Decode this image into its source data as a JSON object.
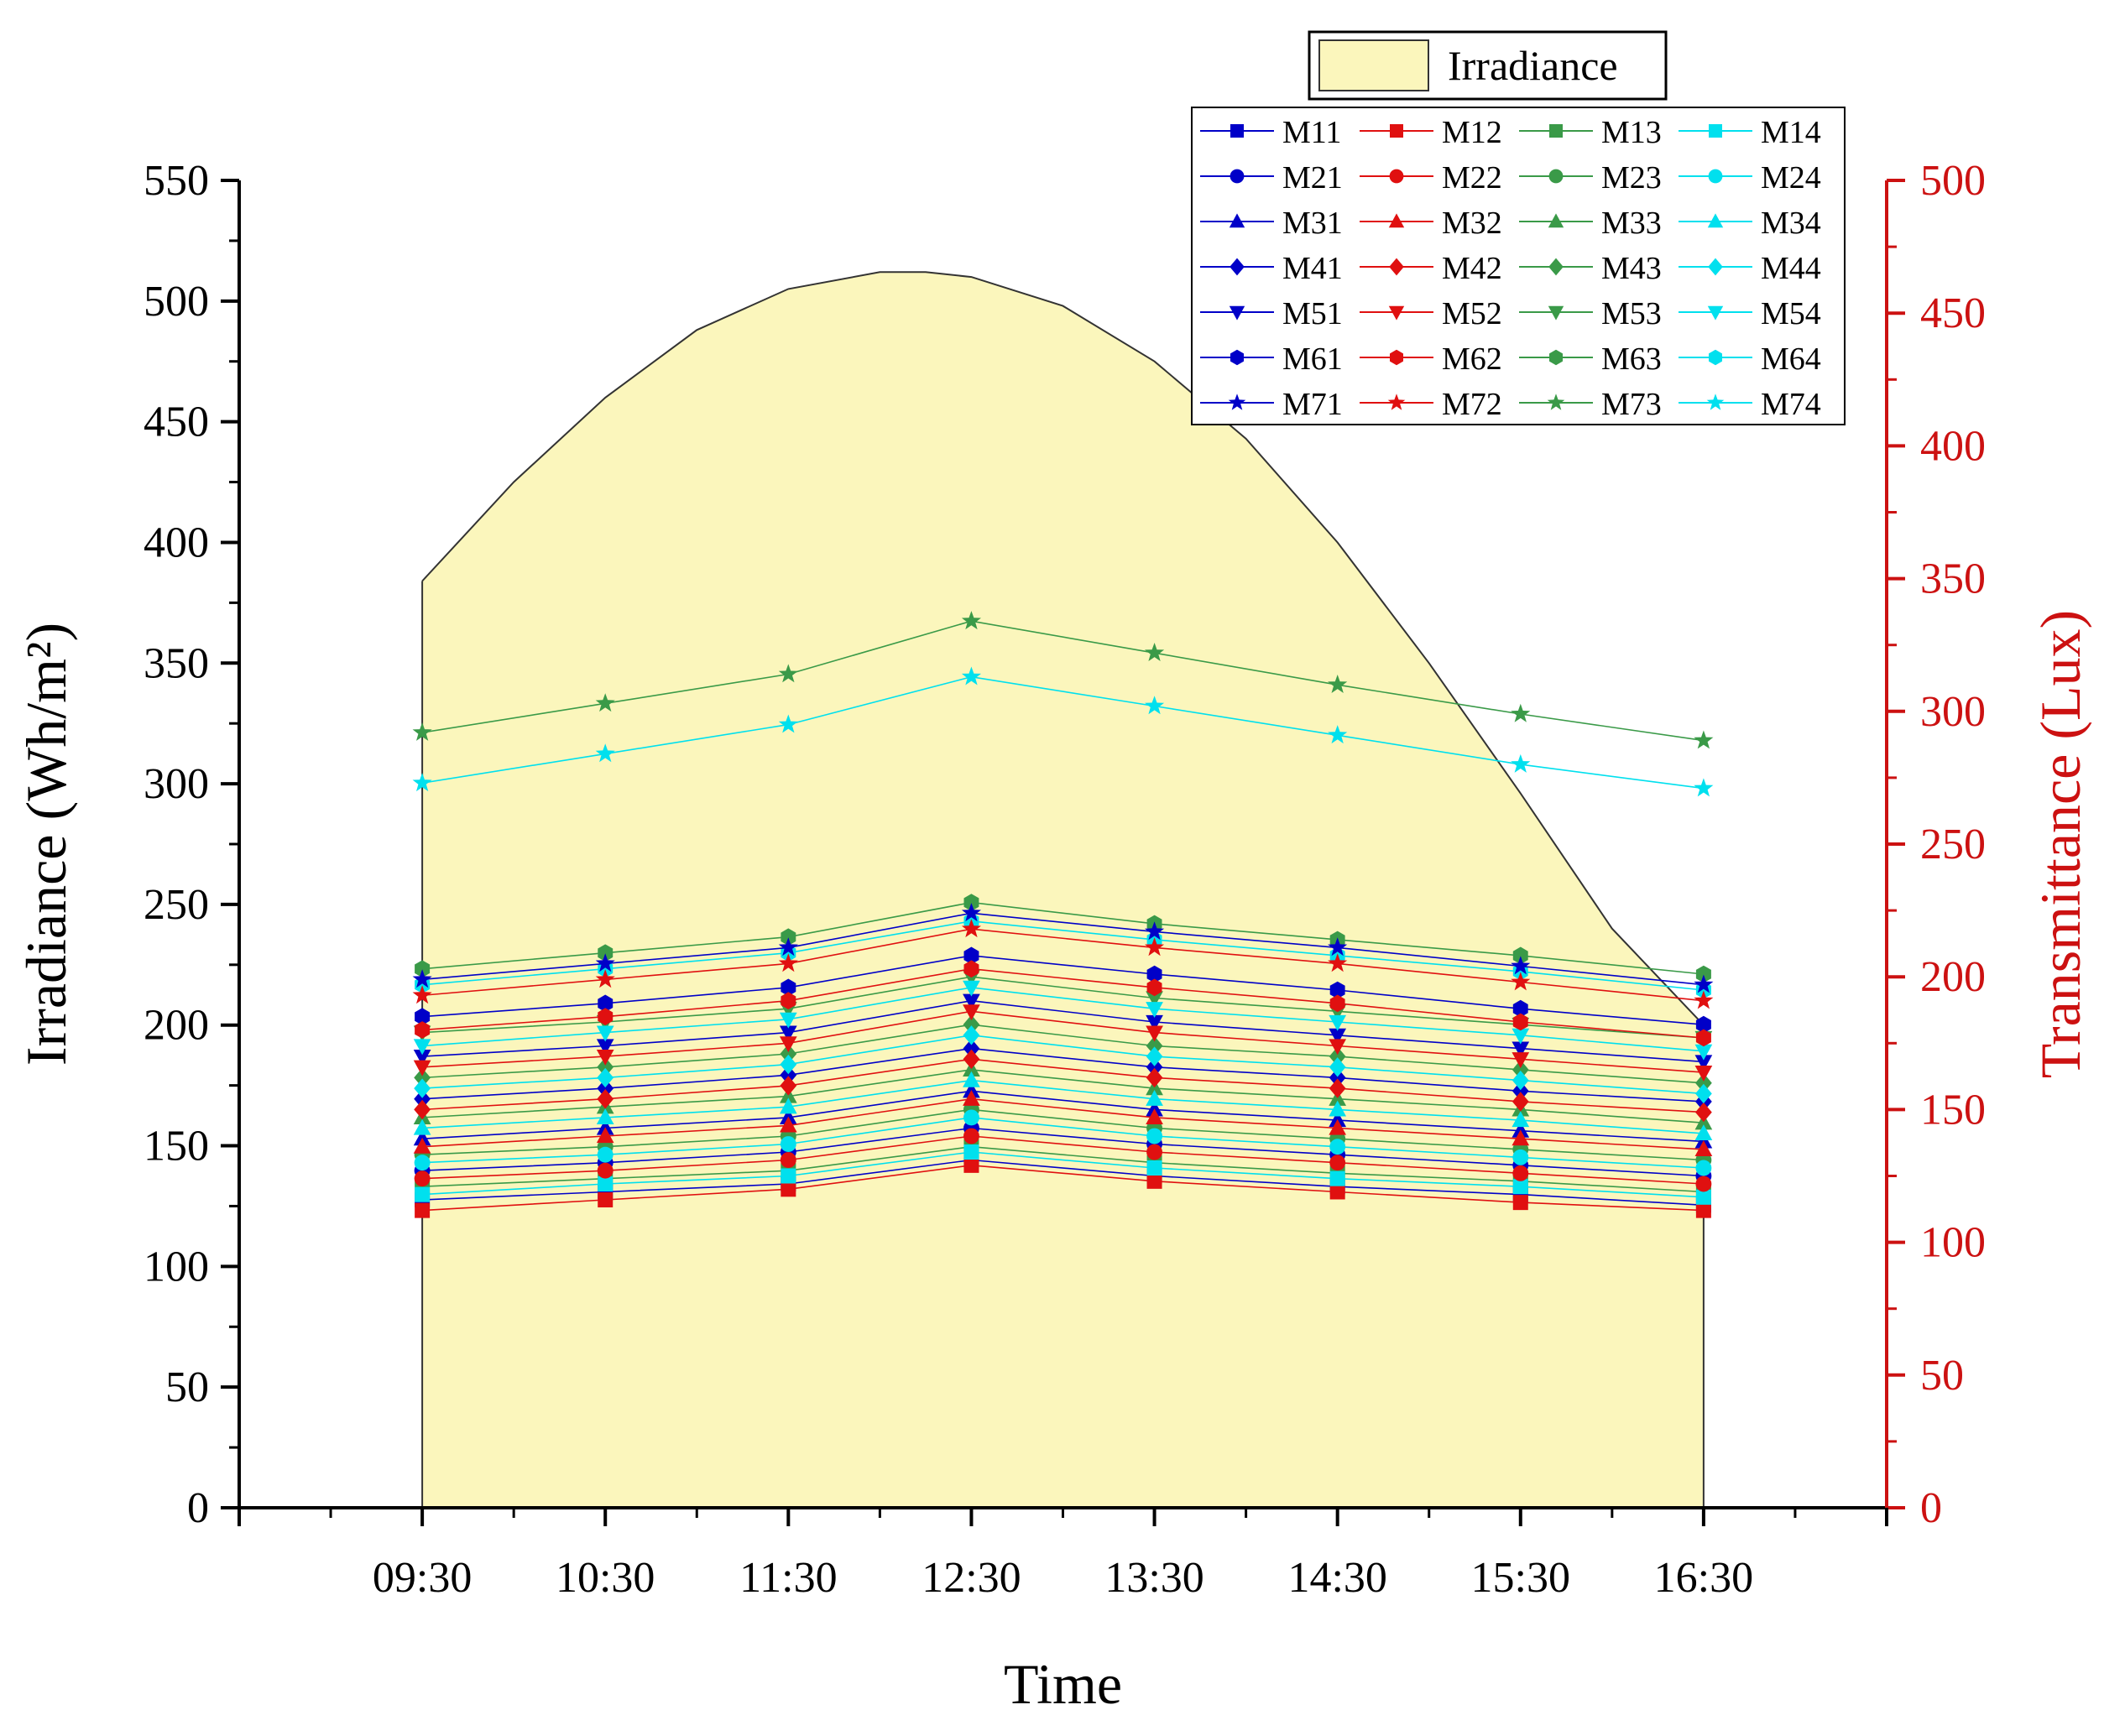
{
  "colors": {
    "blue": "#0000c8",
    "red": "#e01010",
    "green": "#3a9a48",
    "cyan": "#00e0ee",
    "irradiance_fill": "#fbf6bc",
    "right_axis": "#cc1111",
    "axis": "#000000"
  },
  "chart_data": {
    "type": "area+line",
    "title": "",
    "xlabel": "Time",
    "ylabel_left": "Irradiance (Wh/m²)",
    "ylabel_right": "Transmittance (Lux)",
    "x_categories": [
      "09:30",
      "10:30",
      "11:30",
      "12:30",
      "13:30",
      "14:30",
      "15:30",
      "16:30"
    ],
    "x_range": [
      -1,
      8
    ],
    "y_left_range": [
      0,
      550
    ],
    "y_left_ticks": [
      "0",
      "50",
      "100",
      "150",
      "200",
      "250",
      "300",
      "350",
      "400",
      "450",
      "500",
      "550"
    ],
    "y_right_range": [
      0,
      500
    ],
    "y_right_ticks": [
      "0",
      "50",
      "100",
      "150",
      "200",
      "250",
      "300",
      "350",
      "400",
      "450",
      "500"
    ],
    "legend_position": "top-right",
    "irradiance": {
      "name": "Irradiance",
      "axis": "left",
      "x": [
        0,
        0.5,
        1,
        1.5,
        2,
        2.5,
        2.75,
        3,
        3.5,
        4,
        4.5,
        5,
        5.5,
        6,
        6.5,
        7
      ],
      "y": [
        384,
        425,
        460,
        488,
        505,
        512,
        512,
        510,
        498,
        475,
        443,
        400,
        350,
        296,
        240,
        200
      ]
    },
    "series_meta": {
      "markers": [
        "square",
        "circle",
        "triangle-up",
        "diamond",
        "triangle-down",
        "hexagon",
        "star"
      ],
      "color_keys": [
        "blue",
        "red",
        "green",
        "cyan"
      ]
    },
    "series": [
      {
        "name": "M11",
        "values": [
          116,
          119,
          122,
          131,
          125,
          121,
          118,
          114
        ]
      },
      {
        "name": "M12",
        "values": [
          112,
          116,
          120,
          129,
          123,
          119,
          115,
          112
        ]
      },
      {
        "name": "M13",
        "values": [
          121,
          124,
          127,
          136,
          130,
          126,
          123,
          119
        ]
      },
      {
        "name": "M14",
        "values": [
          118,
          122,
          125,
          134,
          128,
          124,
          121,
          117
        ]
      },
      {
        "name": "M21",
        "values": [
          127,
          130,
          134,
          143,
          137,
          133,
          129,
          125
        ]
      },
      {
        "name": "M22",
        "values": [
          124,
          127,
          131,
          140,
          134,
          130,
          126,
          122
        ]
      },
      {
        "name": "M23",
        "values": [
          133,
          136,
          140,
          150,
          143,
          139,
          135,
          131
        ]
      },
      {
        "name": "M24",
        "values": [
          130,
          133,
          137,
          147,
          140,
          136,
          132,
          128
        ]
      },
      {
        "name": "M31",
        "values": [
          139,
          143,
          147,
          157,
          150,
          146,
          142,
          138
        ]
      },
      {
        "name": "M32",
        "values": [
          136,
          140,
          144,
          154,
          147,
          143,
          139,
          135
        ]
      },
      {
        "name": "M33",
        "values": [
          147,
          151,
          155,
          165,
          158,
          154,
          150,
          145
        ]
      },
      {
        "name": "M34",
        "values": [
          143,
          147,
          151,
          161,
          154,
          150,
          146,
          141
        ]
      },
      {
        "name": "M41",
        "values": [
          154,
          158,
          163,
          173,
          166,
          162,
          157,
          153
        ]
      },
      {
        "name": "M42",
        "values": [
          150,
          154,
          159,
          169,
          162,
          158,
          153,
          149
        ]
      },
      {
        "name": "M43",
        "values": [
          162,
          166,
          171,
          182,
          174,
          170,
          165,
          160
        ]
      },
      {
        "name": "M44",
        "values": [
          158,
          162,
          167,
          178,
          170,
          166,
          161,
          156
        ]
      },
      {
        "name": "M51",
        "values": [
          170,
          174,
          179,
          191,
          183,
          178,
          173,
          168
        ]
      },
      {
        "name": "M52",
        "values": [
          166,
          170,
          175,
          187,
          179,
          174,
          169,
          164
        ]
      },
      {
        "name": "M53",
        "values": [
          179,
          183,
          188,
          200,
          192,
          187,
          182,
          177
        ]
      },
      {
        "name": "M54",
        "values": [
          174,
          179,
          184,
          196,
          188,
          183,
          178,
          172
        ]
      },
      {
        "name": "M61",
        "values": [
          185,
          190,
          196,
          208,
          201,
          195,
          188,
          182
        ]
      },
      {
        "name": "M62",
        "values": [
          180,
          185,
          191,
          203,
          196,
          190,
          183,
          177
        ]
      },
      {
        "name": "M63",
        "values": [
          203,
          209,
          215,
          228,
          220,
          214,
          208,
          201
        ]
      },
      {
        "name": "M64",
        "values": [
          197,
          203,
          209,
          221,
          214,
          208,
          202,
          195
        ]
      },
      {
        "name": "M71",
        "values": [
          199,
          205,
          211,
          224,
          217,
          211,
          204,
          197
        ]
      },
      {
        "name": "M72",
        "values": [
          193,
          199,
          205,
          218,
          211,
          205,
          198,
          191
        ]
      },
      {
        "name": "M73",
        "values": [
          292,
          303,
          314,
          334,
          322,
          310,
          299,
          289
        ]
      },
      {
        "name": "M74",
        "values": [
          273,
          284,
          295,
          313,
          302,
          291,
          280,
          271
        ]
      }
    ]
  }
}
